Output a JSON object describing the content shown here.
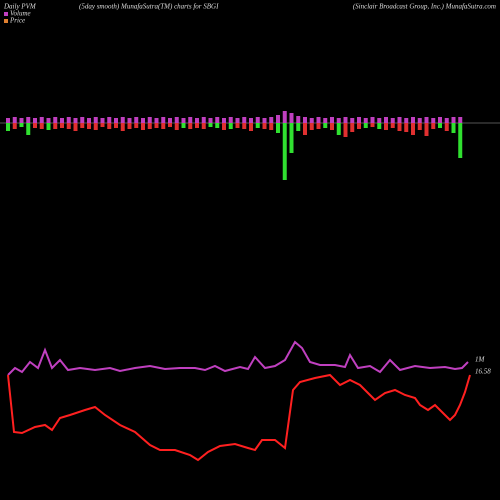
{
  "chart_data": {
    "type": "pvm",
    "title_left": "Daily PVM",
    "title_mid": "(5day smooth) MunafaSutra(TM) charts for SBGI",
    "title_right": "(Sinclair Broadcast Group, Inc.) MunafaSutra.com",
    "legend": [
      {
        "label": "Volume",
        "color": "#c040c0"
      },
      {
        "label": "Price",
        "color": "#e08030"
      }
    ],
    "volume": {
      "up_color": "#c040c0",
      "up": [
        5,
        6,
        5,
        6,
        5,
        6,
        5,
        6,
        5,
        6,
        5,
        6,
        5,
        6,
        5,
        6,
        5,
        6,
        5,
        6,
        5,
        6,
        5,
        6,
        5,
        6,
        5,
        6,
        5,
        6,
        5,
        6,
        5,
        6,
        5,
        6,
        5,
        6,
        5,
        6,
        8,
        12,
        10,
        7,
        6,
        5,
        6,
        5,
        6,
        5,
        6,
        5,
        6,
        5,
        6,
        5,
        6,
        5,
        6,
        5,
        6,
        5,
        6,
        5,
        6,
        5,
        6,
        6
      ],
      "down": [
        8,
        6,
        4,
        12,
        5,
        6,
        7,
        6,
        5,
        6,
        8,
        5,
        6,
        7,
        4,
        6,
        5,
        8,
        6,
        5,
        7,
        6,
        5,
        6,
        4,
        7,
        5,
        6,
        5,
        6,
        4,
        5,
        7,
        6,
        5,
        6,
        8,
        5,
        6,
        7,
        10,
        57,
        30,
        8,
        12,
        7,
        6,
        5,
        7,
        12,
        14,
        9,
        6,
        5,
        4,
        6,
        7,
        5,
        8,
        9,
        12,
        7,
        13,
        6,
        5,
        8,
        10,
        35
      ],
      "down_colors": [
        "#30e030",
        "#e03030",
        "#30e030",
        "#30e030",
        "#e03030",
        "#e03030",
        "#30e030",
        "#e03030",
        "#e03030",
        "#e03030",
        "#e03030",
        "#e03030",
        "#e03030",
        "#e03030",
        "#e03030",
        "#e03030",
        "#e03030",
        "#e03030",
        "#e03030",
        "#e03030",
        "#e03030",
        "#e03030",
        "#e03030",
        "#e03030",
        "#e03030",
        "#e03030",
        "#30e030",
        "#e03030",
        "#e03030",
        "#e03030",
        "#30e030",
        "#30e030",
        "#e03030",
        "#30e030",
        "#e03030",
        "#e03030",
        "#e03030",
        "#30e030",
        "#e03030",
        "#e03030",
        "#30e030",
        "#30e030",
        "#30e030",
        "#30e030",
        "#e03030",
        "#e03030",
        "#e03030",
        "#30e030",
        "#e03030",
        "#30e030",
        "#e03030",
        "#e03030",
        "#e03030",
        "#30e030",
        "#e03030",
        "#30e030",
        "#e03030",
        "#e03030",
        "#e03030",
        "#e03030",
        "#e03030",
        "#e03030",
        "#e03030",
        "#e03030",
        "#30e030",
        "#e03030",
        "#30e030",
        "#30e030"
      ]
    },
    "ylim": [
      0,
      500
    ],
    "smooth": {
      "color": "#c040c0",
      "x": [
        8,
        15,
        22,
        30,
        38,
        45,
        52,
        60,
        68,
        80,
        95,
        110,
        120,
        135,
        150,
        165,
        180,
        195,
        205,
        215,
        225,
        240,
        248,
        255,
        265,
        275,
        285,
        295,
        302,
        310,
        320,
        335,
        345,
        350,
        358,
        370,
        380,
        390,
        400,
        415,
        430,
        445,
        455,
        462,
        468
      ],
      "values": [
        125,
        132,
        128,
        138,
        132,
        150,
        132,
        140,
        130,
        132,
        130,
        132,
        129,
        132,
        134,
        131,
        132,
        132,
        130,
        134,
        129,
        133,
        131,
        143,
        132,
        134,
        140,
        158,
        152,
        138,
        135,
        135,
        133,
        145,
        132,
        134,
        128,
        140,
        130,
        134,
        132,
        133,
        131,
        132,
        138
      ]
    },
    "price": {
      "color": "#ff2020",
      "x": [
        8,
        14,
        22,
        35,
        45,
        52,
        60,
        70,
        85,
        95,
        105,
        120,
        135,
        150,
        160,
        175,
        190,
        198,
        208,
        220,
        235,
        248,
        255,
        262,
        275,
        285,
        293,
        300,
        315,
        330,
        340,
        350,
        360,
        370,
        375,
        385,
        395,
        405,
        415,
        420,
        428,
        435,
        445,
        450,
        455,
        460,
        465,
        470
      ],
      "values": [
        125,
        68,
        67,
        73,
        75,
        70,
        82,
        85,
        90,
        93,
        85,
        75,
        68,
        55,
        50,
        50,
        45,
        40,
        48,
        54,
        56,
        52,
        50,
        60,
        60,
        52,
        110,
        118,
        122,
        125,
        115,
        120,
        115,
        105,
        100,
        107,
        110,
        105,
        102,
        95,
        90,
        95,
        85,
        80,
        85,
        95,
        108,
        125
      ]
    },
    "label_volume": "1M",
    "label_price": "16.58"
  }
}
